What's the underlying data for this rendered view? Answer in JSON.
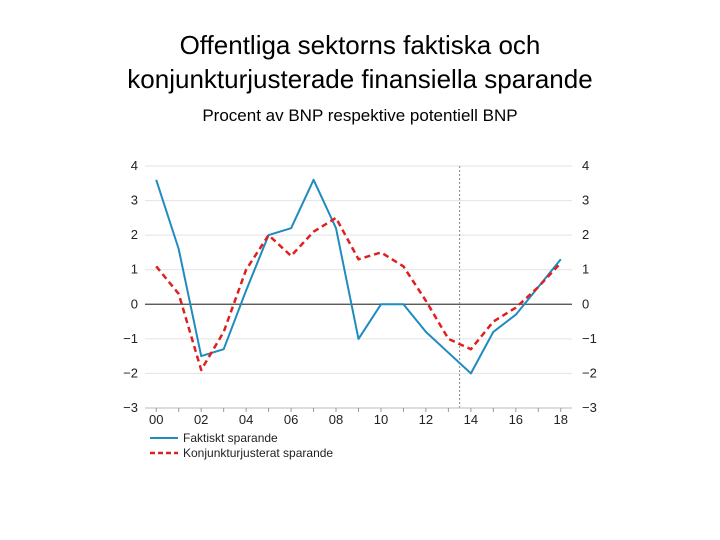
{
  "title_line1": "Offentliga sektorns faktiska och",
  "title_line2": "konjunkturjusterade finansiella sparande",
  "subtitle": "Procent av BNP respektive potentiell BNP",
  "chart_data": {
    "type": "line",
    "title": "Offentliga sektorns faktiska och konjunkturjusterade finansiella sparande",
    "ylabel": "Procent av BNP respektive potentiell BNP",
    "xlabel": "",
    "x": [
      2000,
      2001,
      2002,
      2003,
      2004,
      2005,
      2006,
      2007,
      2008,
      2009,
      2010,
      2011,
      2012,
      2013,
      2014,
      2015,
      2016,
      2017,
      2018
    ],
    "xlim": [
      1999.5,
      2018.5
    ],
    "ylim": [
      -3,
      4
    ],
    "x_tick_labels": [
      "00",
      "02",
      "04",
      "06",
      "08",
      "10",
      "12",
      "14",
      "16",
      "18"
    ],
    "x_tick_values": [
      2000,
      2002,
      2004,
      2006,
      2008,
      2010,
      2012,
      2014,
      2016,
      2018
    ],
    "y_ticks": [
      4,
      3,
      2,
      1,
      0,
      -1,
      -2,
      -3
    ],
    "forecast_divider_x": 2013.5,
    "series": [
      {
        "name": "Faktiskt sparande",
        "color": "#1f8bbf",
        "style": "solid",
        "values": [
          3.6,
          1.6,
          -1.5,
          -1.3,
          0.4,
          2.0,
          2.2,
          3.6,
          2.2,
          -1.0,
          0.0,
          0.0,
          -0.8,
          -1.4,
          -2.0,
          -0.8,
          -0.3,
          0.5,
          1.3
        ]
      },
      {
        "name": "Konjunkturjusterat sparande",
        "color": "#e02020",
        "style": "dashed",
        "values": [
          1.1,
          0.3,
          -1.9,
          -0.8,
          1.0,
          2.0,
          1.4,
          2.1,
          2.5,
          1.3,
          1.5,
          1.1,
          0.1,
          -1.0,
          -1.3,
          -0.5,
          -0.1,
          0.5,
          1.2
        ]
      }
    ],
    "legend_position": "bottom-left"
  }
}
